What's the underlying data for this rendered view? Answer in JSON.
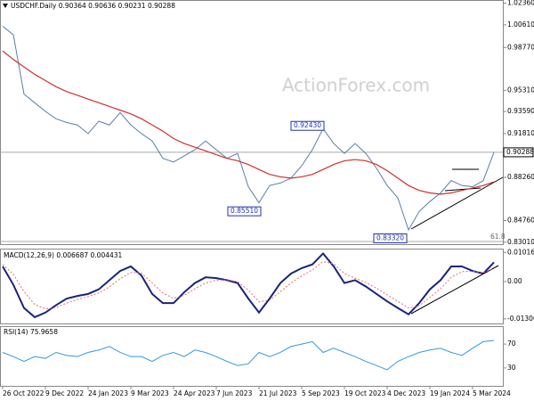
{
  "chart_data": [
    {
      "type": "line",
      "title": "USDCHF.Daily 0.90364 0.90636 0.90231 0.90288",
      "watermark": "ActionForex.com",
      "categories": [
        "26 Oct 2022",
        null,
        null,
        null,
        "9 Dec 2022",
        null,
        null,
        null,
        "24 Jan 2023",
        null,
        null,
        null,
        "9 Mar 2023",
        null,
        null,
        null,
        "24 Apr 2023",
        null,
        null,
        null,
        "7 Jun 2023",
        null,
        null,
        null,
        "21 Jul 2023",
        null,
        null,
        null,
        "5 Sep 2023",
        null,
        null,
        null,
        "19 Oct 2023",
        null,
        null,
        null,
        "4 Dec 2023",
        null,
        null,
        null,
        "19 Jan 2024",
        null,
        null,
        null,
        "5 Mar 2024",
        null,
        null
      ],
      "series": [
        {
          "color": "#5b7fa6",
          "values": [
            1.005,
            0.998,
            0.95,
            0.943,
            0.936,
            0.93,
            0.927,
            0.925,
            0.918,
            0.928,
            0.925,
            0.935,
            0.925,
            0.918,
            0.912,
            0.898,
            0.895,
            0.9,
            0.905,
            0.912,
            0.905,
            0.898,
            0.902,
            0.875,
            0.862,
            0.876,
            0.878,
            0.882,
            0.892,
            0.905,
            0.922,
            0.91,
            0.902,
            0.91,
            0.902,
            0.89,
            0.876,
            0.866,
            0.84,
            0.855,
            0.863,
            0.87,
            0.88,
            0.876,
            0.875,
            0.88,
            0.90288
          ]
        },
        {
          "color": "#d03030",
          "values": [
            0.985,
            0.978,
            0.972,
            0.966,
            0.961,
            0.956,
            0.952,
            0.949,
            0.946,
            0.943,
            0.94,
            0.937,
            0.934,
            0.93,
            0.925,
            0.92,
            0.914,
            0.91,
            0.907,
            0.904,
            0.901,
            0.898,
            0.896,
            0.893,
            0.889,
            0.885,
            0.883,
            0.882,
            0.883,
            0.885,
            0.889,
            0.893,
            0.896,
            0.897,
            0.896,
            0.893,
            0.888,
            0.882,
            0.876,
            0.872,
            0.87,
            0.869,
            0.87,
            0.872,
            0.874,
            0.876,
            0.879
          ]
        }
      ],
      "ylim": [
        0.8285,
        1.0262
      ],
      "yticks": [
        {
          "value": 1.0236,
          "label": "1.02360"
        },
        {
          "value": 1.0061,
          "label": "1.00610"
        },
        {
          "value": 0.9877,
          "label": "0.98770"
        },
        {
          "value": 0.9531,
          "label": "0.95310"
        },
        {
          "value": 0.9359,
          "label": "0.93590"
        },
        {
          "value": 0.9181,
          "label": "0.91810"
        },
        {
          "value": 0.8826,
          "label": "0.88260"
        },
        {
          "value": 0.8476,
          "label": "0.84760"
        },
        {
          "value": 0.8301,
          "label": "0.83010"
        }
      ],
      "last_price": {
        "value": 0.90288,
        "label": "0.90288"
      },
      "annotations": [
        {
          "value": 0.9243,
          "label": "0.92430"
        },
        {
          "value": 0.8551,
          "label": "0.85510"
        },
        {
          "value": 0.8332,
          "label": "0.83320"
        }
      ],
      "fib_label": "61.8"
    },
    {
      "type": "line",
      "title": "MACD(12,26,9) 0.006687 0.004431",
      "series": [
        {
          "color": "#1a237e",
          "values": [
            0.0053,
            -0.0011,
            -0.0092,
            -0.0124,
            -0.0108,
            -0.0082,
            -0.0059,
            -0.005,
            -0.0043,
            -0.0027,
            0.0005,
            0.0037,
            0.0053,
            0.0021,
            -0.0043,
            -0.0075,
            -0.0075,
            -0.0037,
            -0.0005,
            0.0015,
            0.0012,
            0.0005,
            -0.0005,
            -0.0059,
            -0.0108,
            -0.0059,
            -0.0005,
            0.0028,
            0.0047,
            0.006,
            0.0098,
            0.0053,
            -0.0005,
            0.0005,
            -0.0017,
            -0.0043,
            -0.0069,
            -0.0092,
            -0.0114,
            -0.0075,
            -0.0027,
            0.0005,
            0.0053,
            0.0053,
            0.0037,
            0.0028,
            0.006687
          ]
        },
        {
          "color": "#e07070",
          "values": [
            0.006,
            0.0025,
            -0.0035,
            -0.008,
            -0.0095,
            -0.009,
            -0.0075,
            -0.0062,
            -0.0052,
            -0.004,
            -0.0018,
            0.001,
            0.0032,
            0.003,
            -0.0005,
            -0.004,
            -0.0058,
            -0.0048,
            -0.0025,
            -0.0005,
            0.0005,
            0.0006,
            0.0,
            -0.003,
            -0.007,
            -0.0065,
            -0.0035,
            -0.0005,
            0.002,
            0.004,
            0.007,
            0.0062,
            0.0028,
            0.0012,
            -0.0003,
            -0.0023,
            -0.0046,
            -0.0069,
            -0.0092,
            -0.0084,
            -0.0055,
            -0.0025,
            0.0015,
            0.0035,
            0.0036,
            0.0032,
            0.004431
          ]
        }
      ],
      "ylim": [
        -0.0146,
        0.0115
      ],
      "yticks": [
        0.010166,
        {
          "value": 0,
          "label": "0.00"
        },
        -0.013006
      ]
    },
    {
      "type": "line",
      "title": "RSI(14) 75.9658",
      "series": [
        {
          "color": "#3399dd",
          "values": [
            56,
            49,
            41,
            49,
            46,
            56,
            51,
            49,
            56,
            60,
            66,
            56,
            49,
            49,
            41,
            51,
            56,
            49,
            60,
            56,
            49,
            41,
            34,
            37,
            56,
            49,
            56,
            66,
            70,
            74,
            56,
            63,
            56,
            49,
            41,
            34,
            27,
            41,
            49,
            56,
            60,
            63,
            56,
            51,
            63,
            74,
            75.9658
          ]
        }
      ],
      "ylim": [
        0,
        100
      ],
      "yticks": [
        70,
        30
      ]
    }
  ]
}
